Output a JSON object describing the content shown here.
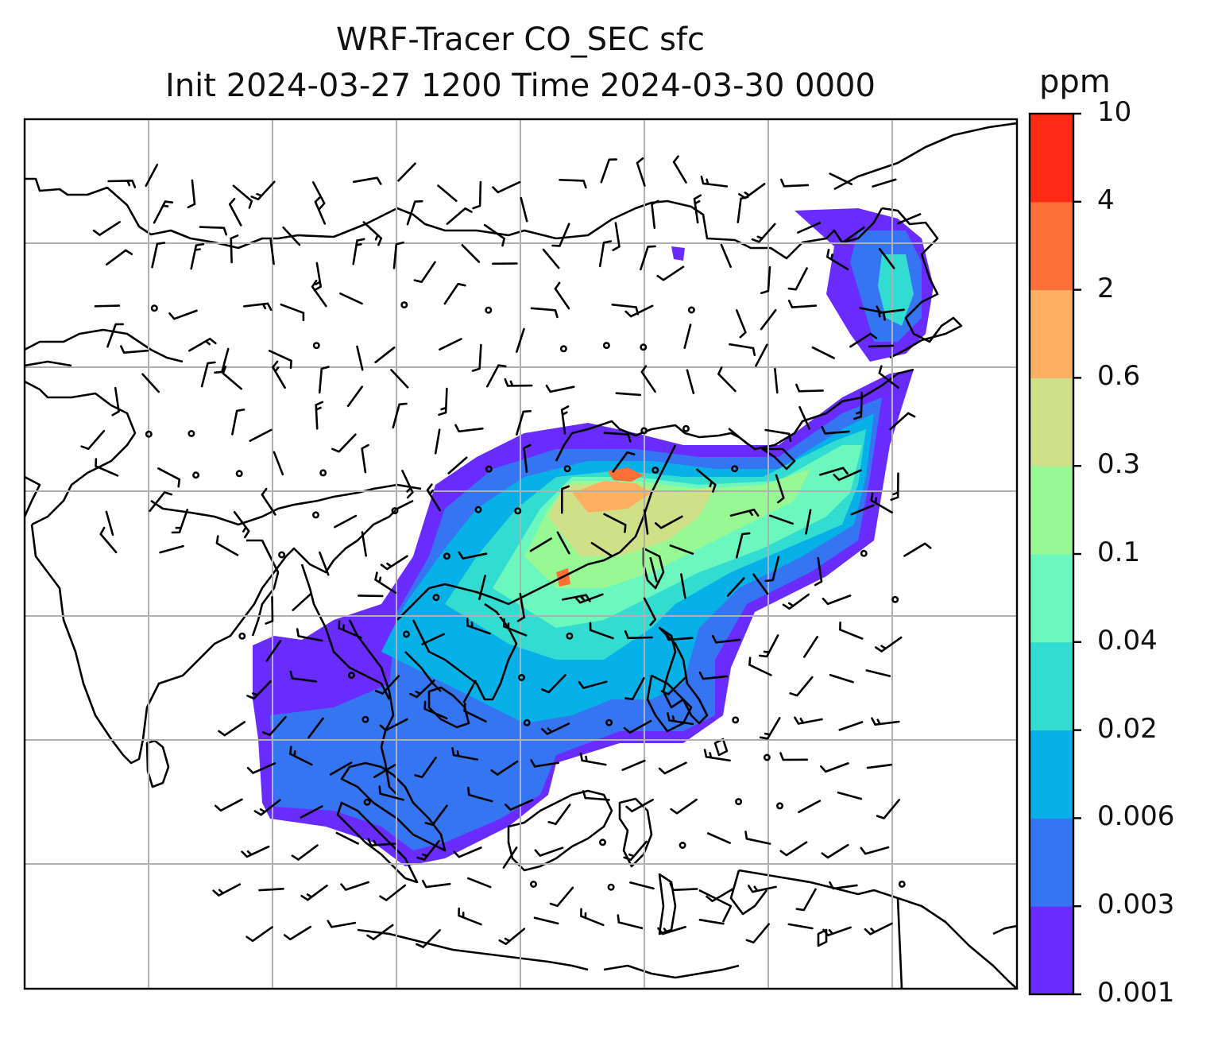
{
  "title_line1": "WRF-Tracer CO_SEC sfc",
  "title_line2": "Init 2024-03-27 1200 Time 2024-03-30 0000",
  "colorbar": {
    "unit": "ppm",
    "levels": [
      "0.001",
      "0.003",
      "0.006",
      "0.02",
      "0.04",
      "0.1",
      "0.3",
      "0.6",
      "2",
      "4",
      "10"
    ],
    "colors": [
      "#6a2bff",
      "#3575f2",
      "#08b0e8",
      "#33dcd0",
      "#6cf7bf",
      "#98f893",
      "#cfe089",
      "#fdb062",
      "#ff7038",
      "#ff2a14"
    ]
  },
  "field": {
    "variable": "CO_SEC",
    "level": "sfc",
    "overlay": "wind barbs",
    "gridlines": true
  },
  "colors": {
    "coast": "#000000",
    "grid": "#b0b0b0"
  }
}
